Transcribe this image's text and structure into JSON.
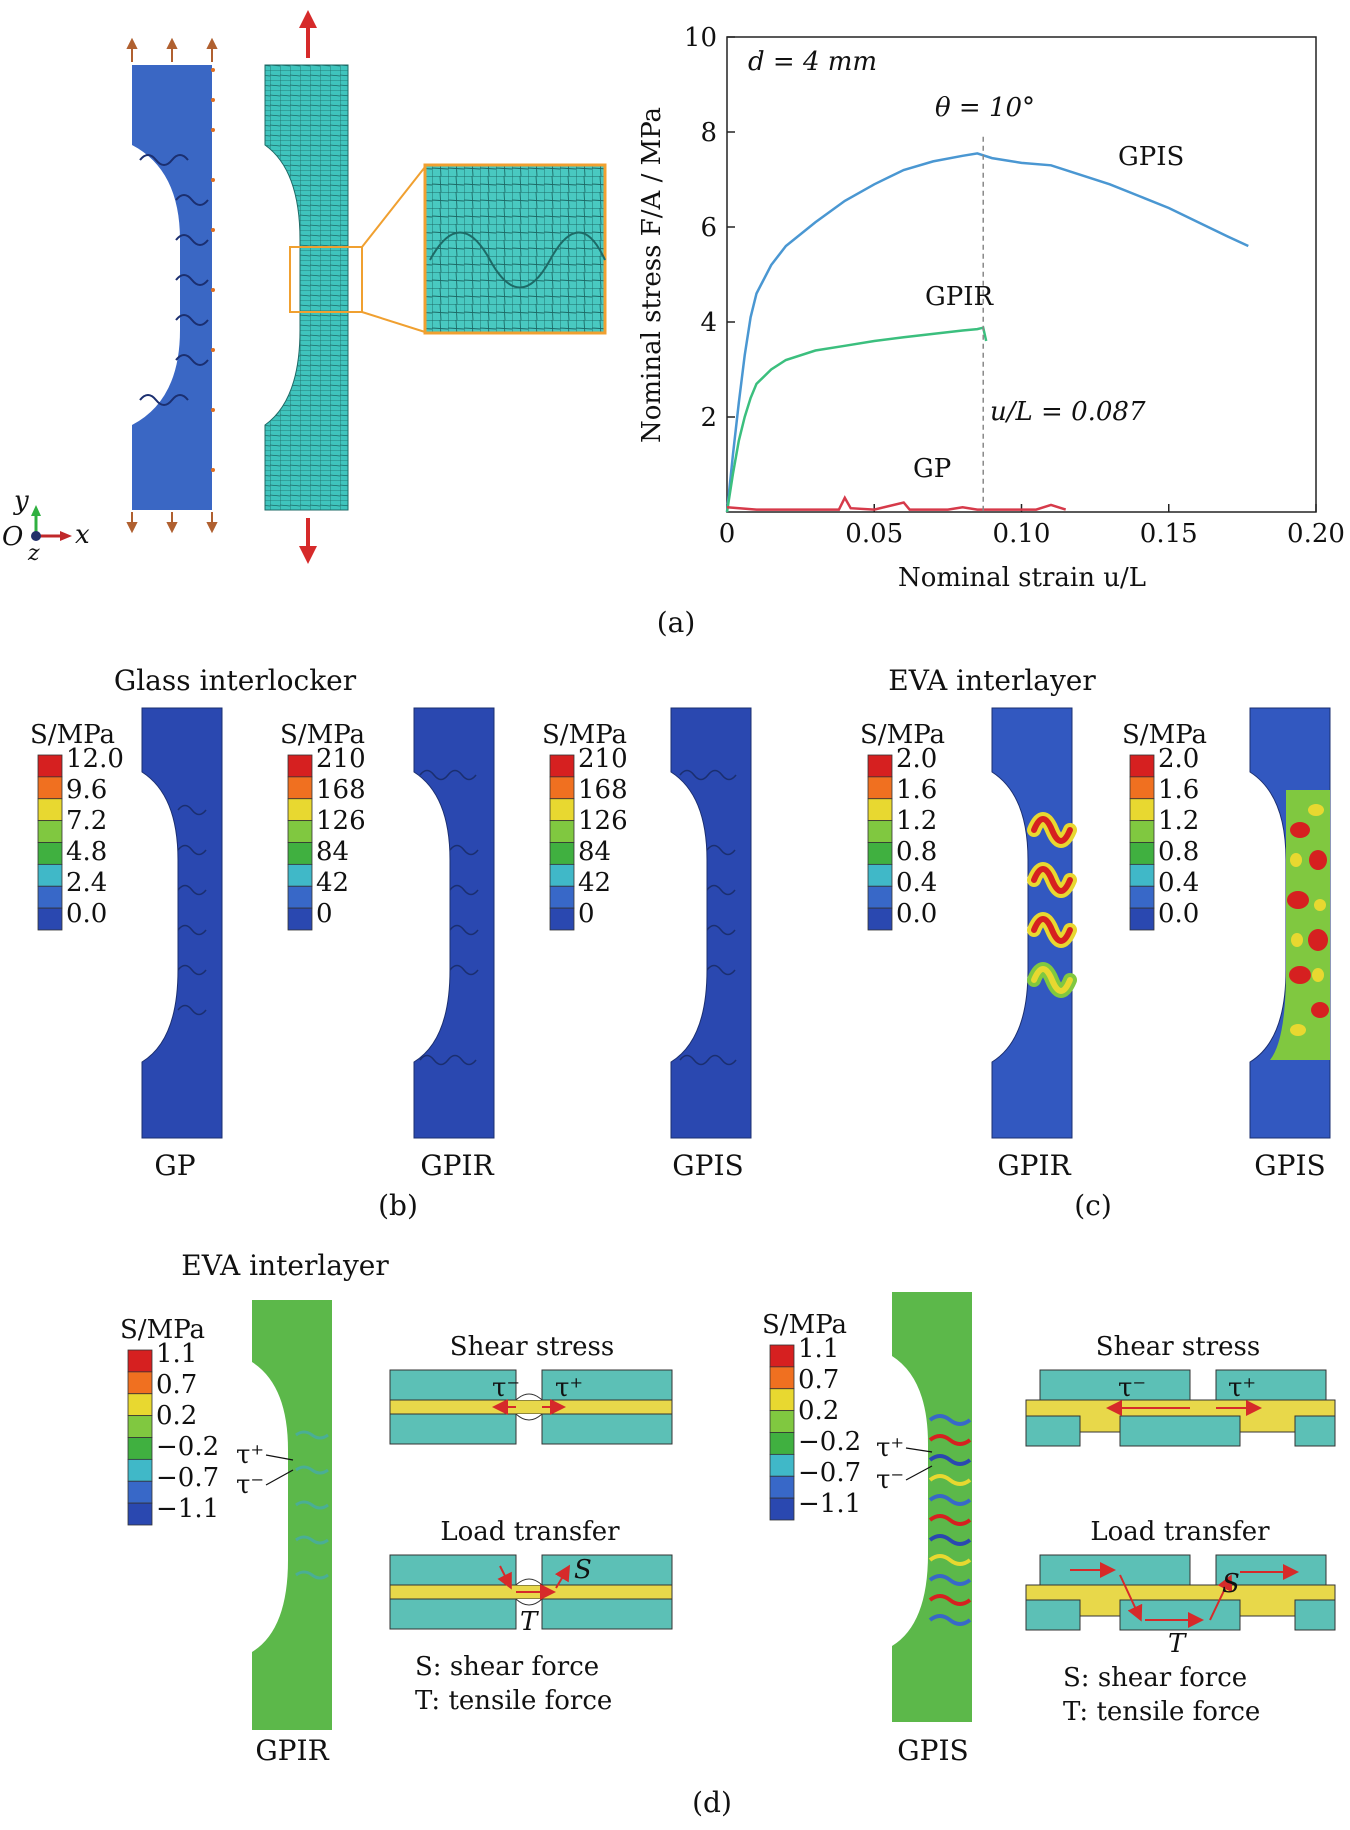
{
  "panel_a": {
    "caption": "(a)",
    "coord_labels": {
      "y": "y",
      "origin": "O",
      "x": "x",
      "z": "z"
    },
    "chart_data": {
      "type": "line",
      "xlabel": "Nominal strain u/L",
      "ylabel": "Nominal stress F/A / MPa",
      "xlim": [
        0,
        0.2
      ],
      "ylim": [
        0,
        10
      ],
      "x_ticks": [
        "0",
        "0.05",
        "0.10",
        "0.15",
        "0.20"
      ],
      "y_ticks": [
        "2",
        "4",
        "6",
        "8",
        "10"
      ],
      "annotations": {
        "d": "d = 4 mm",
        "theta": "θ = 10°",
        "uL": "u/L = 0.087"
      },
      "vline_x": 0.087,
      "series": [
        {
          "name": "GPIS",
          "color": "#4a97d2",
          "points": [
            [
              0,
              0
            ],
            [
              0.002,
              1.2
            ],
            [
              0.004,
              2.3
            ],
            [
              0.006,
              3.3
            ],
            [
              0.008,
              4.1
            ],
            [
              0.01,
              4.6
            ],
            [
              0.015,
              5.2
            ],
            [
              0.02,
              5.6
            ],
            [
              0.03,
              6.1
            ],
            [
              0.04,
              6.55
            ],
            [
              0.05,
              6.9
            ],
            [
              0.06,
              7.2
            ],
            [
              0.07,
              7.38
            ],
            [
              0.08,
              7.5
            ],
            [
              0.085,
              7.55
            ],
            [
              0.09,
              7.45
            ],
            [
              0.095,
              7.4
            ],
            [
              0.1,
              7.35
            ],
            [
              0.11,
              7.3
            ],
            [
              0.12,
              7.1
            ],
            [
              0.13,
              6.9
            ],
            [
              0.14,
              6.65
            ],
            [
              0.15,
              6.4
            ],
            [
              0.16,
              6.1
            ],
            [
              0.17,
              5.8
            ],
            [
              0.177,
              5.6
            ]
          ]
        },
        {
          "name": "GPIR",
          "color": "#3bbf7e",
          "points": [
            [
              0,
              0
            ],
            [
              0.002,
              0.8
            ],
            [
              0.004,
              1.5
            ],
            [
              0.006,
              2.0
            ],
            [
              0.008,
              2.4
            ],
            [
              0.01,
              2.7
            ],
            [
              0.015,
              3.0
            ],
            [
              0.02,
              3.2
            ],
            [
              0.03,
              3.4
            ],
            [
              0.04,
              3.5
            ],
            [
              0.05,
              3.6
            ],
            [
              0.06,
              3.68
            ],
            [
              0.07,
              3.75
            ],
            [
              0.08,
              3.82
            ],
            [
              0.085,
              3.85
            ],
            [
              0.087,
              3.88
            ],
            [
              0.088,
              3.6
            ]
          ]
        },
        {
          "name": "GP",
          "color": "#d63a4a",
          "points": [
            [
              0,
              0.1
            ],
            [
              0.01,
              0.05
            ],
            [
              0.02,
              0.05
            ],
            [
              0.03,
              0.05
            ],
            [
              0.038,
              0.05
            ],
            [
              0.04,
              0.3
            ],
            [
              0.042,
              0.08
            ],
            [
              0.05,
              0.05
            ],
            [
              0.06,
              0.2
            ],
            [
              0.062,
              0.05
            ],
            [
              0.075,
              0.05
            ],
            [
              0.08,
              0.1
            ],
            [
              0.085,
              0.05
            ],
            [
              0.105,
              0.05
            ],
            [
              0.11,
              0.15
            ],
            [
              0.115,
              0.05
            ]
          ]
        }
      ]
    }
  },
  "panel_b": {
    "caption": "(b)",
    "title": "Glass interlocker",
    "legends": [
      {
        "unit": "S/MPa",
        "values": [
          "12.0",
          "9.6",
          "7.2",
          "4.8",
          "2.4",
          "0.0"
        ]
      },
      {
        "unit": "S/MPa",
        "values": [
          "210",
          "168",
          "126",
          "84",
          "42",
          "0"
        ]
      },
      {
        "unit": "S/MPa",
        "values": [
          "210",
          "168",
          "126",
          "84",
          "42",
          "0"
        ]
      }
    ],
    "labels": [
      "GP",
      "GPIR",
      "GPIS"
    ]
  },
  "panel_c": {
    "caption": "(c)",
    "title": "EVA interlayer",
    "legends": [
      {
        "unit": "S/MPa",
        "values": [
          "2.0",
          "1.6",
          "1.2",
          "0.8",
          "0.4",
          "0.0"
        ]
      },
      {
        "unit": "S/MPa",
        "values": [
          "2.0",
          "1.6",
          "1.2",
          "0.8",
          "0.4",
          "0.0"
        ]
      }
    ],
    "labels": [
      "GPIR",
      "GPIS"
    ]
  },
  "panel_d": {
    "caption": "(d)",
    "title": "EVA interlayer",
    "legends": [
      {
        "unit": "S/MPa",
        "values": [
          "1.1",
          "0.7",
          "0.2",
          "−0.2",
          "−0.7",
          "−1.1"
        ]
      },
      {
        "unit": "S/MPa",
        "values": [
          "1.1",
          "0.7",
          "0.2",
          "−0.2",
          "−0.7",
          "−1.1"
        ]
      }
    ],
    "tau_plus": "τ⁺",
    "tau_minus": "τ⁻",
    "labels": [
      "GPIR",
      "GPIS"
    ],
    "shear_title": "Shear stress",
    "load_title": "Load transfer",
    "S": "S",
    "T": "T",
    "legend_S": "S: shear force",
    "legend_T": "T: tensile force"
  },
  "colors": {
    "specimen_blue": "#3a67c4",
    "mesh_teal": "#3fc4bd",
    "highlight_orange": "#f0a030",
    "arrow_red": "#d62a2a",
    "eva_green": "#5cb84a",
    "layer_yellow": "#e8d84a",
    "plate_teal": "#5cc0b6"
  },
  "contour_colors": [
    "#d62020",
    "#f07020",
    "#e8d830",
    "#80c840",
    "#40b040",
    "#40b8c8",
    "#3868c8",
    "#2a48b0"
  ]
}
